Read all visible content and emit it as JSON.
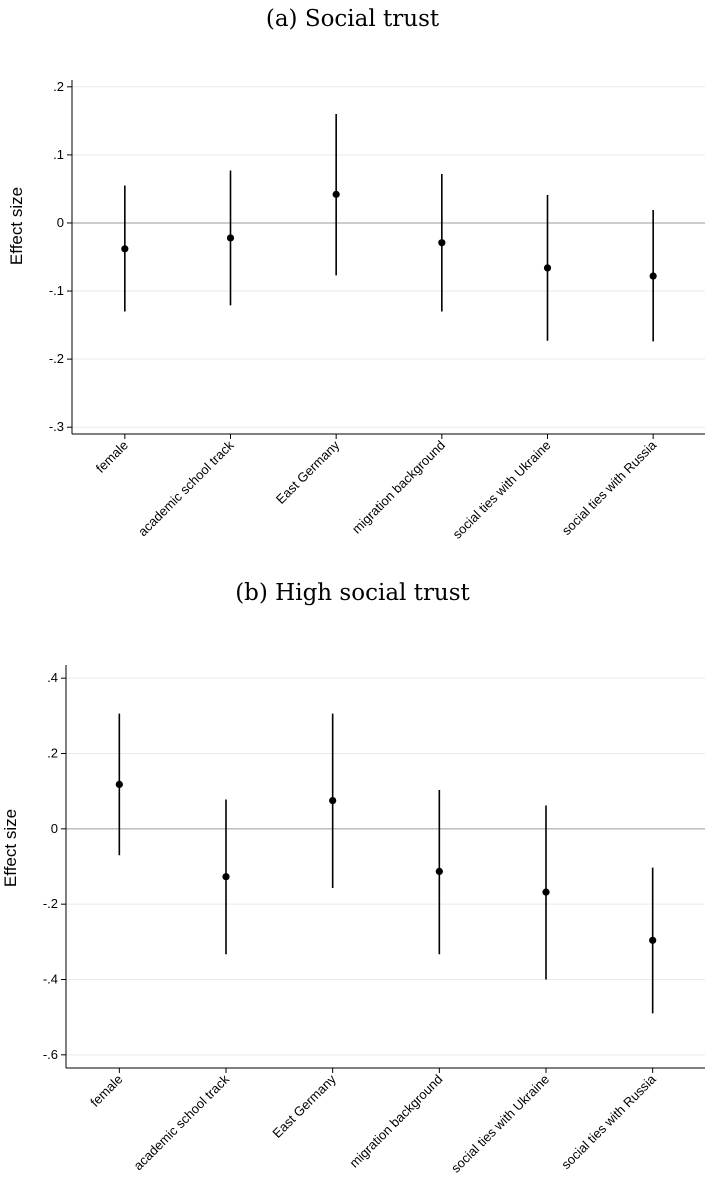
{
  "chart_data": [
    {
      "type": "scatter",
      "title": "(a) Social trust",
      "ylabel": "Effect size",
      "xlabel": "",
      "ylim": [
        -0.31,
        0.21
      ],
      "yticks": [
        0.2,
        0.1,
        0,
        -0.1,
        -0.2,
        -0.3
      ],
      "ytick_labels": [
        ".2",
        ".1",
        "0",
        "-.1",
        "-.2",
        "-.3"
      ],
      "grid": true,
      "reference_line": 0,
      "categories": [
        "female",
        "academic school track",
        "East Germany",
        "migration background",
        "social ties with Ukraine",
        "social ties with Russia"
      ],
      "series": [
        {
          "values": [
            -0.038,
            -0.022,
            0.042,
            -0.029,
            -0.066,
            -0.078
          ],
          "ci_low": [
            -0.13,
            -0.121,
            -0.077,
            -0.13,
            -0.173,
            -0.174
          ],
          "ci_high": [
            0.055,
            0.077,
            0.16,
            0.072,
            0.041,
            0.019
          ]
        }
      ]
    },
    {
      "type": "scatter",
      "title": "(b) High social trust",
      "ylabel": "Effect size",
      "xlabel": "",
      "ylim": [
        -0.635,
        0.435
      ],
      "yticks": [
        0.4,
        0.2,
        0,
        -0.2,
        -0.4,
        -0.6
      ],
      "ytick_labels": [
        ".4",
        ".2",
        "0",
        "-.2",
        "-.4",
        "-.6"
      ],
      "grid": true,
      "reference_line": 0,
      "categories": [
        "female",
        "academic school track",
        "East Germany",
        "migration background",
        "social ties with Ukraine",
        "social ties with Russia"
      ],
      "series": [
        {
          "values": [
            0.118,
            -0.127,
            0.075,
            -0.113,
            -0.168,
            -0.296
          ],
          "ci_low": [
            -0.07,
            -0.333,
            -0.157,
            -0.333,
            -0.4,
            -0.49
          ],
          "ci_high": [
            0.306,
            0.078,
            0.306,
            0.103,
            0.062,
            -0.103
          ]
        }
      ]
    }
  ]
}
